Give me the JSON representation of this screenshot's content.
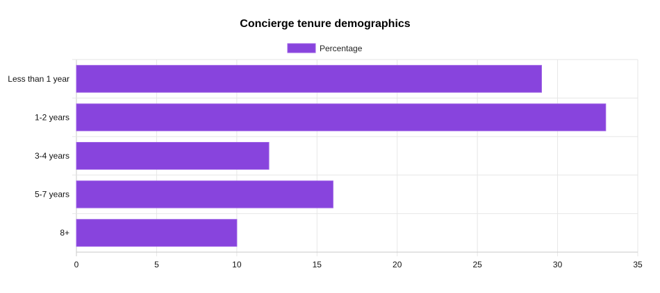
{
  "chart_data": {
    "type": "bar",
    "orientation": "horizontal",
    "title": "Concierge tenure demographics",
    "categories": [
      "Less than 1 year",
      "1-2 years",
      "3-4 years",
      "5-7 years",
      "8+"
    ],
    "series": [
      {
        "name": "Percentage",
        "values": [
          29,
          33,
          12,
          16,
          10
        ]
      }
    ],
    "xlabel": "",
    "ylabel": "",
    "xlim": [
      0,
      35
    ],
    "xticks": [
      0,
      5,
      10,
      15,
      20,
      25,
      30,
      35
    ],
    "grid": true,
    "legend_position": "top-center",
    "colors": {
      "bar_fill": "#8844dd",
      "bar_border": "#9b5de5"
    }
  }
}
